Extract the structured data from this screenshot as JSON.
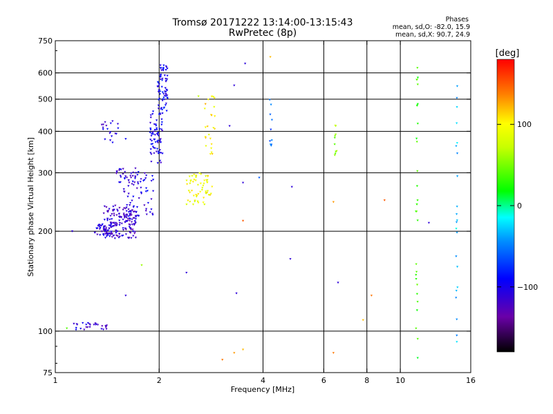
{
  "title_line1": "Tromsø 20171222 13:14:00-13:15:43",
  "title_line2": "RwPretec (8p)",
  "stats": {
    "heading": "Phases",
    "line_o": "mean, sd,O:  -82.0, 15.9",
    "line_x": "mean, sd,X:  90.7, 24.9"
  },
  "colorbar": {
    "label": "[deg]",
    "min": -180,
    "max": 180,
    "ticks": [
      {
        "value": 100,
        "label": "100"
      },
      {
        "value": 0,
        "label": "0"
      },
      {
        "value": -100,
        "label": "−100"
      }
    ]
  },
  "chart_data": {
    "type": "scatter",
    "xlabel": "Frequency [MHz]",
    "ylabel": "Stationary phase Virtual Height [km]",
    "xscale": "log",
    "yscale": "log",
    "xlim": [
      1,
      16
    ],
    "ylim": [
      75,
      750
    ],
    "x_ticks": [
      {
        "value": 1,
        "label": "1"
      },
      {
        "value": 2,
        "label": "2"
      },
      {
        "value": 4,
        "label": "4"
      },
      {
        "value": 6,
        "label": "6"
      },
      {
        "value": 8,
        "label": "8"
      },
      {
        "value": 10,
        "label": "10"
      },
      {
        "value": 16,
        "label": "16"
      }
    ],
    "y_ticks": [
      {
        "value": 75,
        "label": "75"
      },
      {
        "value": 100,
        "label": "100"
      },
      {
        "value": 200,
        "label": "200"
      },
      {
        "value": 300,
        "label": "300"
      },
      {
        "value": 400,
        "label": "400"
      },
      {
        "value": 500,
        "label": "500"
      },
      {
        "value": 600,
        "label": "600"
      },
      {
        "value": 750,
        "label": "750"
      }
    ],
    "x_gridlines": [
      2,
      4,
      6,
      8,
      10
    ],
    "y_gridlines": [
      100,
      200,
      300,
      400,
      500,
      600
    ],
    "clusters": [
      {
        "desc": "o-trace low",
        "f": [
          1.38,
          1.72
        ],
        "h": [
          190,
          240
        ],
        "phase": -115,
        "n": 170
      },
      {
        "desc": "o-trace lower band",
        "f": [
          1.3,
          1.45
        ],
        "h": [
          193,
          210
        ],
        "phase": -110,
        "n": 40
      },
      {
        "desc": "o-trace rise",
        "f": [
          1.55,
          1.95
        ],
        "h": [
          220,
          310
        ],
        "phase": -105,
        "n": 60
      },
      {
        "desc": "o-trace cusp",
        "f": [
          1.88,
          2.05
        ],
        "h": [
          320,
          460
        ],
        "phase": -100,
        "n": 70
      },
      {
        "desc": "o-trace top",
        "f": [
          1.98,
          2.12
        ],
        "h": [
          460,
          640
        ],
        "phase": -95,
        "n": 70
      },
      {
        "desc": "o-trace mid",
        "f": [
          1.5,
          1.75
        ],
        "h": [
          280,
          310
        ],
        "phase": -110,
        "n": 30
      },
      {
        "desc": "upper scatter",
        "f": [
          1.35,
          1.6
        ],
        "h": [
          370,
          430
        ],
        "phase": -105,
        "n": 20
      },
      {
        "desc": "x-trace",
        "f": [
          2.4,
          2.85
        ],
        "h": [
          240,
          300
        ],
        "phase": 95,
        "n": 60
      },
      {
        "desc": "x-trace upper",
        "f": [
          2.7,
          2.9
        ],
        "h": [
          340,
          520
        ],
        "phase": 105,
        "n": 25
      },
      {
        "desc": "e-layer",
        "f": [
          1.12,
          1.42
        ],
        "h": [
          101,
          106
        ],
        "phase": -110,
        "n": 28
      },
      {
        "desc": "column 4.2",
        "f": [
          4.18,
          4.25
        ],
        "h": [
          360,
          500
        ],
        "phase": -60,
        "n": 10
      },
      {
        "desc": "column 6.5",
        "f": [
          6.45,
          6.55
        ],
        "h": [
          320,
          460
        ],
        "phase": 60,
        "n": 10
      },
      {
        "desc": "column 11",
        "f": [
          11.1,
          11.25
        ],
        "h": [
          80,
          650
        ],
        "phase": 30,
        "n": 30
      },
      {
        "desc": "column 14.5",
        "f": [
          14.5,
          14.65
        ],
        "h": [
          90,
          560
        ],
        "phase": -30,
        "n": 22
      }
    ],
    "points": [
      {
        "f": 3.55,
        "h": 640,
        "phase": -110
      },
      {
        "f": 4.2,
        "h": 670,
        "phase": 120
      },
      {
        "f": 4.8,
        "h": 165,
        "phase": -110
      },
      {
        "f": 4.85,
        "h": 272,
        "phase": -110
      },
      {
        "f": 6.6,
        "h": 140,
        "phase": -110
      },
      {
        "f": 6.4,
        "h": 245,
        "phase": 130
      },
      {
        "f": 6.4,
        "h": 86,
        "phase": 140
      },
      {
        "f": 8.25,
        "h": 128,
        "phase": 140
      },
      {
        "f": 7.8,
        "h": 108,
        "phase": 120
      },
      {
        "f": 9.0,
        "h": 248,
        "phase": 150
      },
      {
        "f": 12.1,
        "h": 212,
        "phase": -110
      },
      {
        "f": 3.35,
        "h": 130,
        "phase": -110
      },
      {
        "f": 3.5,
        "h": 280,
        "phase": -110
      },
      {
        "f": 3.05,
        "h": 82,
        "phase": 140
      },
      {
        "f": 3.3,
        "h": 86,
        "phase": 130
      },
      {
        "f": 3.5,
        "h": 88,
        "phase": 120
      },
      {
        "f": 3.5,
        "h": 215,
        "phase": 150
      },
      {
        "f": 2.4,
        "h": 150,
        "phase": -110
      },
      {
        "f": 1.78,
        "h": 158,
        "phase": 60
      },
      {
        "f": 1.6,
        "h": 128,
        "phase": -110
      },
      {
        "f": 3.9,
        "h": 290,
        "phase": -60
      },
      {
        "f": 3.2,
        "h": 415,
        "phase": -110
      },
      {
        "f": 3.3,
        "h": 550,
        "phase": -110
      },
      {
        "f": 2.6,
        "h": 510,
        "phase": 70
      },
      {
        "f": 1.12,
        "h": 200,
        "phase": -110
      },
      {
        "f": 1.08,
        "h": 102,
        "phase": 40
      }
    ]
  }
}
